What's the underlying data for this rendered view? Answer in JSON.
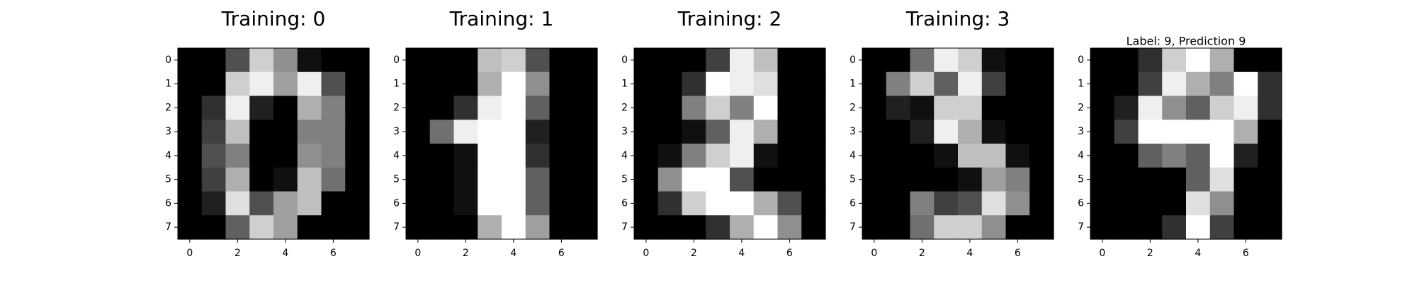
{
  "chart_data": [
    {
      "type": "heatmap",
      "title": "Training: 0",
      "title_style": "large",
      "colormap": "gray",
      "value_range": [
        0,
        16
      ],
      "x_ticks": [
        0,
        2,
        4,
        6
      ],
      "y_ticks": [
        0,
        1,
        2,
        3,
        4,
        5,
        6,
        7
      ],
      "values": [
        [
          0,
          0,
          5,
          13,
          9,
          1,
          0,
          0
        ],
        [
          0,
          0,
          13,
          15,
          10,
          15,
          5,
          0
        ],
        [
          0,
          3,
          15,
          2,
          0,
          11,
          8,
          0
        ],
        [
          0,
          4,
          12,
          0,
          0,
          8,
          8,
          0
        ],
        [
          0,
          5,
          8,
          0,
          0,
          9,
          8,
          0
        ],
        [
          0,
          4,
          11,
          0,
          1,
          12,
          7,
          0
        ],
        [
          0,
          2,
          14,
          5,
          10,
          12,
          0,
          0
        ],
        [
          0,
          0,
          6,
          13,
          10,
          0,
          0,
          0
        ]
      ]
    },
    {
      "type": "heatmap",
      "title": "Training: 1",
      "title_style": "large",
      "colormap": "gray",
      "value_range": [
        0,
        16
      ],
      "x_ticks": [
        0,
        2,
        4,
        6
      ],
      "y_ticks": [
        0,
        1,
        2,
        3,
        4,
        5,
        6,
        7
      ],
      "values": [
        [
          0,
          0,
          0,
          12,
          13,
          5,
          0,
          0
        ],
        [
          0,
          0,
          0,
          11,
          16,
          9,
          0,
          0
        ],
        [
          0,
          0,
          3,
          15,
          16,
          6,
          0,
          0
        ],
        [
          0,
          7,
          15,
          16,
          16,
          2,
          0,
          0
        ],
        [
          0,
          0,
          1,
          16,
          16,
          3,
          0,
          0
        ],
        [
          0,
          0,
          1,
          16,
          16,
          6,
          0,
          0
        ],
        [
          0,
          0,
          1,
          16,
          16,
          6,
          0,
          0
        ],
        [
          0,
          0,
          0,
          11,
          16,
          10,
          0,
          0
        ]
      ]
    },
    {
      "type": "heatmap",
      "title": "Training: 2",
      "title_style": "large",
      "colormap": "gray",
      "value_range": [
        0,
        16
      ],
      "x_ticks": [
        0,
        2,
        4,
        6
      ],
      "y_ticks": [
        0,
        1,
        2,
        3,
        4,
        5,
        6,
        7
      ],
      "values": [
        [
          0,
          0,
          0,
          4,
          15,
          12,
          0,
          0
        ],
        [
          0,
          0,
          3,
          16,
          15,
          14,
          0,
          0
        ],
        [
          0,
          0,
          8,
          13,
          8,
          16,
          0,
          0
        ],
        [
          0,
          0,
          1,
          6,
          15,
          11,
          0,
          0
        ],
        [
          0,
          1,
          8,
          13,
          15,
          1,
          0,
          0
        ],
        [
          0,
          9,
          16,
          16,
          5,
          0,
          0,
          0
        ],
        [
          0,
          3,
          13,
          16,
          16,
          11,
          5,
          0
        ],
        [
          0,
          0,
          0,
          3,
          11,
          16,
          9,
          0
        ]
      ]
    },
    {
      "type": "heatmap",
      "title": "Training: 3",
      "title_style": "large",
      "colormap": "gray",
      "value_range": [
        0,
        16
      ],
      "x_ticks": [
        0,
        2,
        4,
        6
      ],
      "y_ticks": [
        0,
        1,
        2,
        3,
        4,
        5,
        6,
        7
      ],
      "values": [
        [
          0,
          0,
          7,
          15,
          13,
          1,
          0,
          0
        ],
        [
          0,
          8,
          13,
          6,
          15,
          4,
          0,
          0
        ],
        [
          0,
          2,
          1,
          13,
          13,
          0,
          0,
          0
        ],
        [
          0,
          0,
          2,
          15,
          11,
          1,
          0,
          0
        ],
        [
          0,
          0,
          0,
          1,
          12,
          12,
          1,
          0
        ],
        [
          0,
          0,
          0,
          0,
          1,
          10,
          8,
          0
        ],
        [
          0,
          0,
          8,
          4,
          5,
          14,
          9,
          0
        ],
        [
          0,
          0,
          7,
          13,
          13,
          9,
          0,
          0
        ]
      ]
    },
    {
      "type": "heatmap",
      "title": "Label: 9, Prediction 9",
      "title_style": "small",
      "colormap": "gray",
      "value_range": [
        0,
        16
      ],
      "x_ticks": [
        0,
        2,
        4,
        6
      ],
      "y_ticks": [
        0,
        1,
        2,
        3,
        4,
        5,
        6,
        7
      ],
      "values": [
        [
          0,
          0,
          3,
          13,
          16,
          11,
          0,
          0
        ],
        [
          0,
          0,
          4,
          15,
          11,
          8,
          16,
          3
        ],
        [
          0,
          2,
          15,
          9,
          6,
          13,
          15,
          3
        ],
        [
          0,
          4,
          16,
          16,
          16,
          16,
          11,
          0
        ],
        [
          0,
          0,
          6,
          8,
          6,
          16,
          2,
          0
        ],
        [
          0,
          0,
          0,
          0,
          6,
          14,
          0,
          0
        ],
        [
          0,
          0,
          0,
          0,
          14,
          9,
          0,
          0
        ],
        [
          0,
          0,
          0,
          3,
          16,
          4,
          0,
          0
        ]
      ]
    }
  ]
}
